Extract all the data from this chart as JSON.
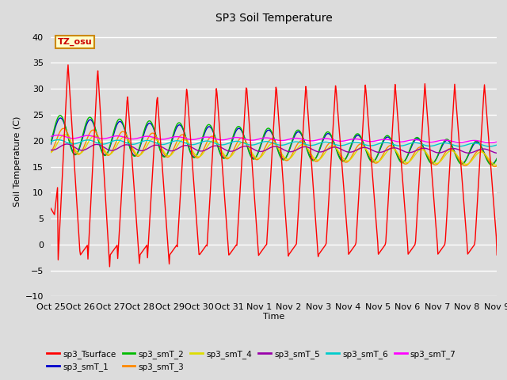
{
  "title": "SP3 Soil Temperature",
  "ylabel": "Soil Temperature (C)",
  "xlabel": "Time",
  "ylim": [
    -10,
    42
  ],
  "yticks": [
    -10,
    -5,
    0,
    5,
    10,
    15,
    20,
    25,
    30,
    35,
    40
  ],
  "bg_color": "#dcdcdc",
  "tz_label": "TZ_osu",
  "series_colors": {
    "sp3_Tsurface": "#ff0000",
    "sp3_smT_1": "#0000cc",
    "sp3_smT_2": "#00bb00",
    "sp3_smT_3": "#ff8800",
    "sp3_smT_4": "#dddd00",
    "sp3_smT_5": "#9900aa",
    "sp3_smT_6": "#00cccc",
    "sp3_smT_7": "#ff00ff"
  },
  "x_tick_labels": [
    "Oct 25",
    "Oct 26",
    "Oct 27",
    "Oct 28",
    "Oct 29",
    "Oct 30",
    "Oct 31",
    "Nov 1",
    "Nov 2",
    "Nov 3",
    "Nov 4",
    "Nov 5",
    "Nov 6",
    "Nov 7",
    "Nov 8",
    "Nov 9"
  ],
  "n_days": 15
}
